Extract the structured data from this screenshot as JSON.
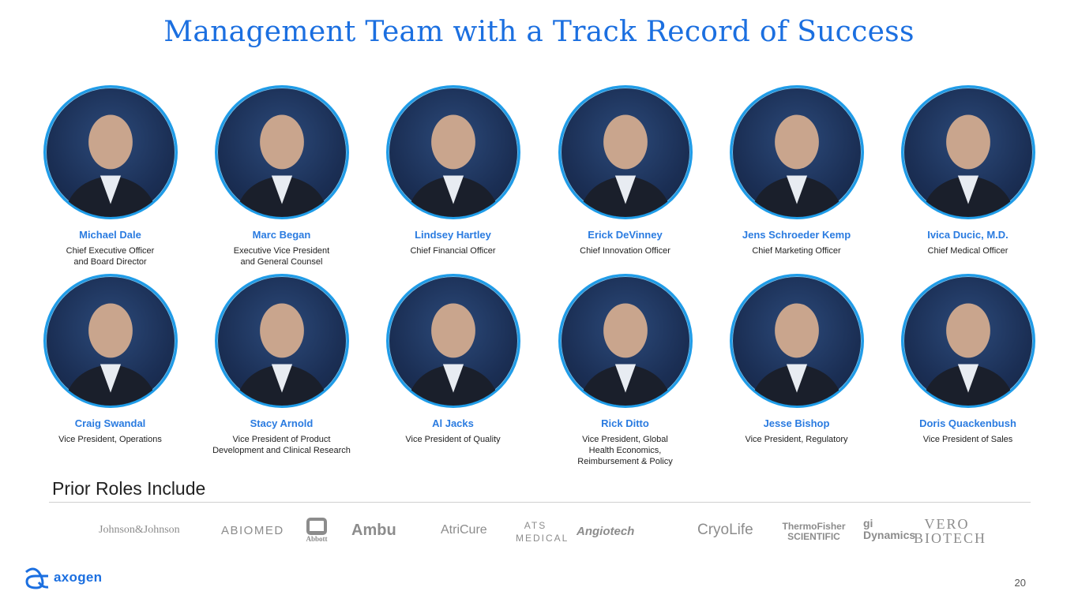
{
  "title": "Management Team with a Track Record of Success",
  "team": [
    {
      "name": "Michael Dale",
      "role": "Chief Executive Officer\nand Board Director"
    },
    {
      "name": "Marc Began",
      "role": "Executive Vice President\nand General Counsel"
    },
    {
      "name": "Lindsey Hartley",
      "role": "Chief Financial Officer"
    },
    {
      "name": "Erick DeVinney",
      "role": "Chief Innovation Officer"
    },
    {
      "name": "Jens Schroeder Kemp",
      "role": "Chief Marketing Officer"
    },
    {
      "name": "Ivica Ducic, M.D.",
      "role": "Chief Medical Officer"
    },
    {
      "name": "Craig Swandal",
      "role": "Vice President, Operations"
    },
    {
      "name": "Stacy Arnold",
      "role": "Vice President of Product\nDevelopment and Clinical Research"
    },
    {
      "name": "Al Jacks",
      "role": "Vice President of Quality"
    },
    {
      "name": "Rick Ditto",
      "role": "Vice President, Global\nHealth Economics,\nReimbursement & Policy"
    },
    {
      "name": "Jesse Bishop",
      "role": "Vice President, Regulatory"
    },
    {
      "name": "Doris Quackenbush",
      "role": "Vice President of Sales"
    }
  ],
  "prior_roles": {
    "heading": "Prior Roles Include",
    "logos": [
      "Johnson&Johnson",
      "ABIOMED",
      "Abbott",
      "Ambu",
      "AtriCure",
      "ATS MEDICAL",
      "Angiotech",
      "CryoLife",
      "ThermoFisher SCIENTIFIC",
      "gi Dynamics",
      "VERO BIOTECH"
    ]
  },
  "footer": {
    "brand": "axogen",
    "page_number": "20"
  },
  "colors": {
    "title": "#1b6fe0",
    "name": "#2a7be0",
    "photo_ring": "#1f9ce8",
    "photo_bg": "#1b2f55"
  }
}
